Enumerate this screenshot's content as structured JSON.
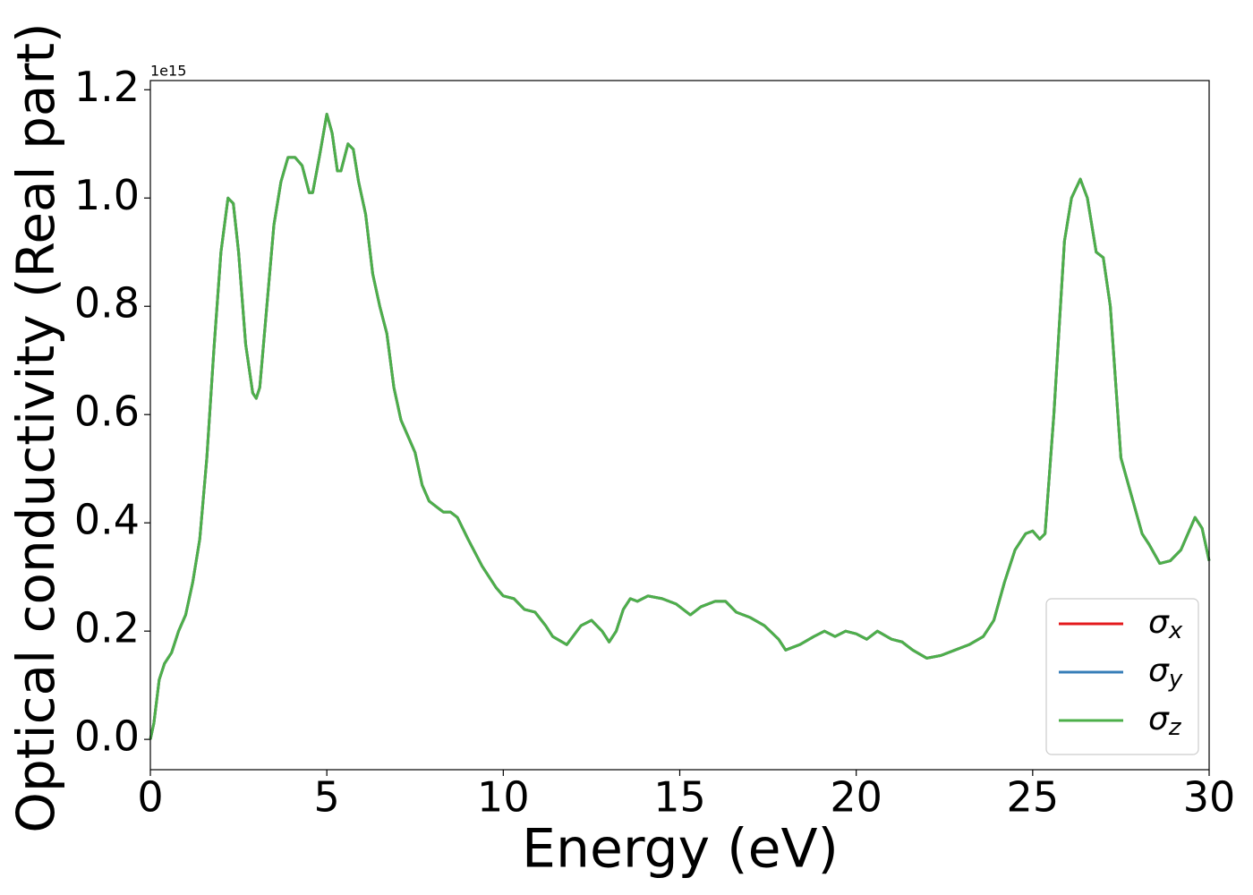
{
  "chart_data": {
    "type": "line",
    "xlabel": "Energy (eV)",
    "ylabel": "Optical conductivity (Real part)",
    "offset_text": "1e15",
    "x": [
      0,
      0.1,
      0.25,
      0.4,
      0.6,
      0.8,
      1.0,
      1.2,
      1.4,
      1.6,
      1.8,
      2.0,
      2.2,
      2.35,
      2.5,
      2.7,
      2.9,
      3.0,
      3.1,
      3.3,
      3.5,
      3.7,
      3.9,
      4.1,
      4.3,
      4.5,
      4.6,
      4.8,
      5.0,
      5.15,
      5.3,
      5.4,
      5.6,
      5.75,
      5.9,
      6.1,
      6.3,
      6.5,
      6.7,
      6.9,
      7.1,
      7.3,
      7.5,
      7.7,
      7.9,
      8.1,
      8.3,
      8.5,
      8.7,
      9.0,
      9.4,
      9.8,
      10.0,
      10.3,
      10.6,
      10.9,
      11.2,
      11.4,
      11.8,
      12.2,
      12.5,
      12.8,
      13.0,
      13.2,
      13.4,
      13.6,
      13.8,
      14.1,
      14.5,
      14.9,
      15.3,
      15.6,
      16.0,
      16.3,
      16.6,
      17.0,
      17.4,
      17.8,
      18.0,
      18.4,
      18.8,
      19.1,
      19.4,
      19.7,
      20.0,
      20.3,
      20.6,
      21.0,
      21.3,
      21.6,
      22.0,
      22.4,
      22.8,
      23.2,
      23.6,
      23.9,
      24.2,
      24.5,
      24.8,
      25.0,
      25.2,
      25.35,
      25.6,
      25.9,
      26.1,
      26.35,
      26.55,
      26.8,
      27.0,
      27.2,
      27.5,
      27.8,
      28.1,
      28.3,
      28.6,
      28.9,
      29.2,
      29.6,
      29.8,
      30.0
    ],
    "series": [
      {
        "name": "σx",
        "color": "#e41a1c",
        "values": [
          0.0,
          0.03,
          0.11,
          0.14,
          0.16,
          0.2,
          0.23,
          0.29,
          0.37,
          0.52,
          0.72,
          0.9,
          1.0,
          0.99,
          0.9,
          0.73,
          0.64,
          0.63,
          0.65,
          0.8,
          0.95,
          1.03,
          1.075,
          1.075,
          1.06,
          1.01,
          1.01,
          1.08,
          1.155,
          1.12,
          1.05,
          1.05,
          1.1,
          1.09,
          1.03,
          0.97,
          0.86,
          0.8,
          0.75,
          0.65,
          0.59,
          0.56,
          0.53,
          0.47,
          0.44,
          0.43,
          0.42,
          0.42,
          0.41,
          0.37,
          0.32,
          0.28,
          0.265,
          0.26,
          0.24,
          0.235,
          0.21,
          0.19,
          0.175,
          0.21,
          0.22,
          0.2,
          0.18,
          0.2,
          0.24,
          0.26,
          0.255,
          0.265,
          0.26,
          0.25,
          0.23,
          0.245,
          0.255,
          0.255,
          0.235,
          0.225,
          0.21,
          0.185,
          0.165,
          0.175,
          0.19,
          0.2,
          0.19,
          0.2,
          0.195,
          0.185,
          0.2,
          0.185,
          0.18,
          0.165,
          0.15,
          0.155,
          0.165,
          0.175,
          0.19,
          0.22,
          0.29,
          0.35,
          0.38,
          0.385,
          0.37,
          0.38,
          0.6,
          0.92,
          1.0,
          1.035,
          1.0,
          0.9,
          0.89,
          0.8,
          0.52,
          0.45,
          0.38,
          0.36,
          0.325,
          0.33,
          0.35,
          0.41,
          0.39,
          0.33
        ]
      },
      {
        "name": "σy",
        "color": "#377eb8",
        "values": [
          0.0,
          0.03,
          0.11,
          0.14,
          0.16,
          0.2,
          0.23,
          0.29,
          0.37,
          0.52,
          0.72,
          0.9,
          1.0,
          0.99,
          0.9,
          0.73,
          0.64,
          0.63,
          0.65,
          0.8,
          0.95,
          1.03,
          1.075,
          1.075,
          1.06,
          1.01,
          1.01,
          1.08,
          1.155,
          1.12,
          1.05,
          1.05,
          1.1,
          1.09,
          1.03,
          0.97,
          0.86,
          0.8,
          0.75,
          0.65,
          0.59,
          0.56,
          0.53,
          0.47,
          0.44,
          0.43,
          0.42,
          0.42,
          0.41,
          0.37,
          0.32,
          0.28,
          0.265,
          0.26,
          0.24,
          0.235,
          0.21,
          0.19,
          0.175,
          0.21,
          0.22,
          0.2,
          0.18,
          0.2,
          0.24,
          0.26,
          0.255,
          0.265,
          0.26,
          0.25,
          0.23,
          0.245,
          0.255,
          0.255,
          0.235,
          0.225,
          0.21,
          0.185,
          0.165,
          0.175,
          0.19,
          0.2,
          0.19,
          0.2,
          0.195,
          0.185,
          0.2,
          0.185,
          0.18,
          0.165,
          0.15,
          0.155,
          0.165,
          0.175,
          0.19,
          0.22,
          0.29,
          0.35,
          0.38,
          0.385,
          0.37,
          0.38,
          0.6,
          0.92,
          1.0,
          1.035,
          1.0,
          0.9,
          0.89,
          0.8,
          0.52,
          0.45,
          0.38,
          0.36,
          0.325,
          0.33,
          0.35,
          0.41,
          0.39,
          0.33
        ]
      },
      {
        "name": "σz",
        "color": "#4daf4a",
        "values": [
          0.0,
          0.03,
          0.11,
          0.14,
          0.16,
          0.2,
          0.23,
          0.29,
          0.37,
          0.52,
          0.72,
          0.9,
          1.0,
          0.99,
          0.9,
          0.73,
          0.64,
          0.63,
          0.65,
          0.8,
          0.95,
          1.03,
          1.075,
          1.075,
          1.06,
          1.01,
          1.01,
          1.08,
          1.155,
          1.12,
          1.05,
          1.05,
          1.1,
          1.09,
          1.03,
          0.97,
          0.86,
          0.8,
          0.75,
          0.65,
          0.59,
          0.56,
          0.53,
          0.47,
          0.44,
          0.43,
          0.42,
          0.42,
          0.41,
          0.37,
          0.32,
          0.28,
          0.265,
          0.26,
          0.24,
          0.235,
          0.21,
          0.19,
          0.175,
          0.21,
          0.22,
          0.2,
          0.18,
          0.2,
          0.24,
          0.26,
          0.255,
          0.265,
          0.26,
          0.25,
          0.23,
          0.245,
          0.255,
          0.255,
          0.235,
          0.225,
          0.21,
          0.185,
          0.165,
          0.175,
          0.19,
          0.2,
          0.19,
          0.2,
          0.195,
          0.185,
          0.2,
          0.185,
          0.18,
          0.165,
          0.15,
          0.155,
          0.165,
          0.175,
          0.19,
          0.22,
          0.29,
          0.35,
          0.38,
          0.385,
          0.37,
          0.38,
          0.6,
          0.92,
          1.0,
          1.035,
          1.0,
          0.9,
          0.89,
          0.8,
          0.52,
          0.45,
          0.38,
          0.36,
          0.325,
          0.33,
          0.35,
          0.41,
          0.39,
          0.33
        ]
      }
    ],
    "xlim": [
      0,
      30
    ],
    "xticks": [
      0,
      5,
      10,
      15,
      20,
      25,
      30
    ],
    "ylim": [
      -0.056,
      1.217
    ],
    "yticks": [
      {
        "value": 0,
        "label": "0.0"
      },
      0.2,
      0.4,
      0.6,
      0.8,
      {
        "value": 1,
        "label": "1.0"
      },
      1.2
    ],
    "legend": "lower right",
    "grid": false
  }
}
